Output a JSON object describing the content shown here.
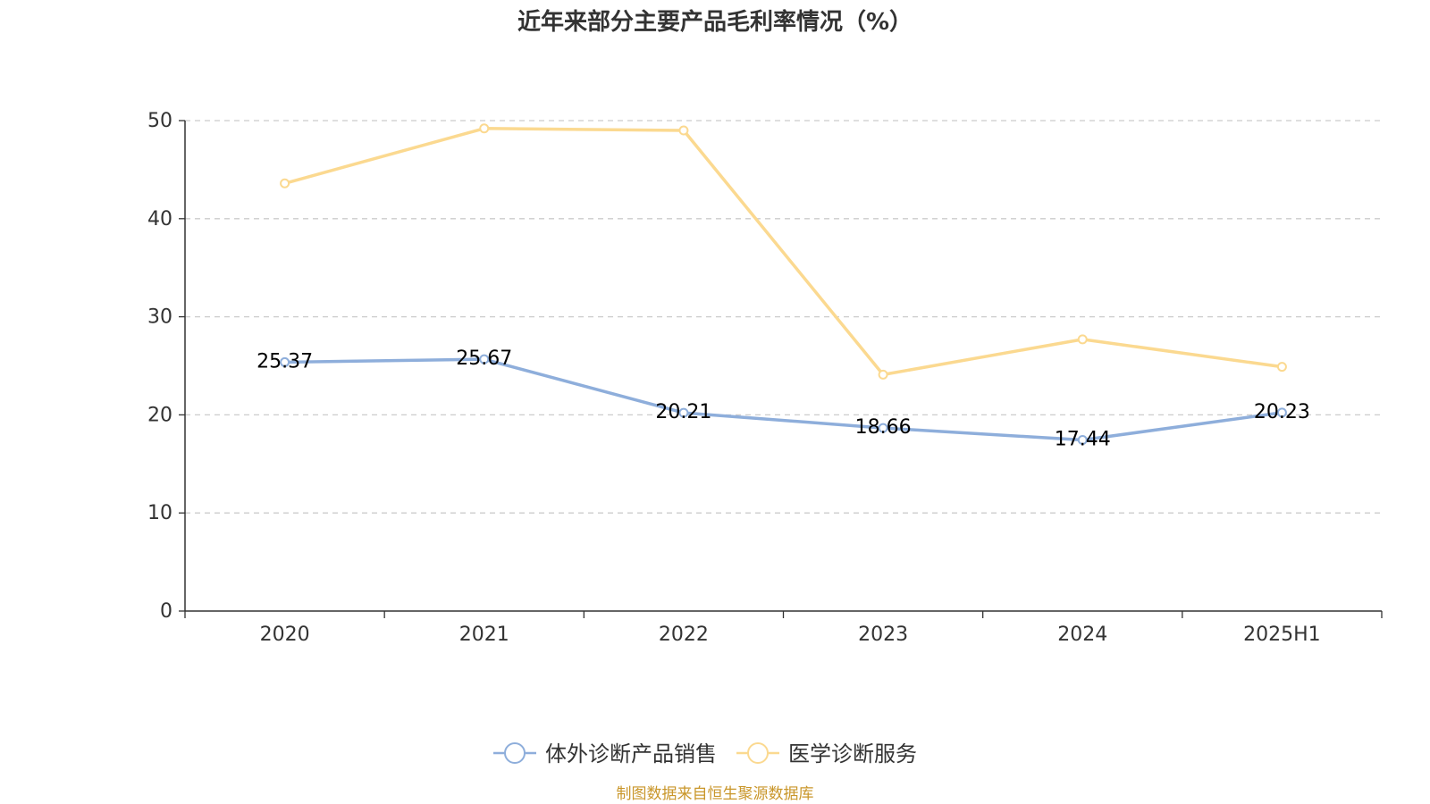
{
  "chart_data": {
    "type": "line",
    "title": "近年来部分主要产品毛利率情况（%）",
    "categories": [
      "2020",
      "2021",
      "2022",
      "2023",
      "2024",
      "2025H1"
    ],
    "ylim": [
      0,
      50
    ],
    "yticks": [
      0,
      10,
      20,
      30,
      40,
      50
    ],
    "grid": true,
    "legend_position": "bottom",
    "series": [
      {
        "name": "体外诊断产品销售",
        "color": "#8eaedb",
        "values": [
          25.37,
          25.67,
          20.21,
          18.66,
          17.44,
          20.23
        ],
        "show_labels": true
      },
      {
        "name": "医学诊断服务",
        "color": "#fbd990",
        "values": [
          43.6,
          49.2,
          49.0,
          24.1,
          27.7,
          24.9
        ],
        "show_labels": false
      }
    ]
  },
  "source": "制图数据来自恒生聚源数据库"
}
